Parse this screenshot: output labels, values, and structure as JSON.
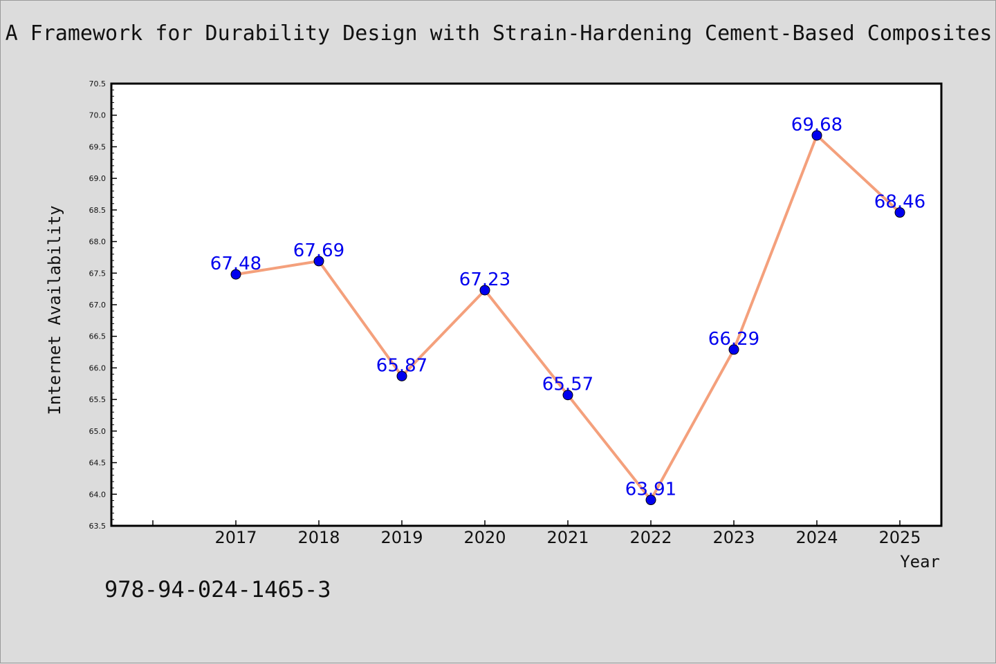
{
  "chart_data": {
    "type": "line",
    "title": "A Framework for Durability Design with Strain-Hardening Cement-Based Composites",
    "xlabel": "Year",
    "ylabel": "Internet Availability",
    "categories": [
      "2017",
      "2018",
      "2019",
      "2020",
      "2021",
      "2022",
      "2023",
      "2024",
      "2025"
    ],
    "values": [
      67.48,
      67.69,
      65.87,
      67.23,
      65.57,
      63.91,
      66.29,
      69.68,
      68.46
    ],
    "data_labels": [
      "67.48",
      "67.69",
      "65.87",
      "67.23",
      "65.57",
      "63.91",
      "66.29",
      "69.68",
      "68.46"
    ],
    "yticks": [
      "63.5",
      "64.0",
      "64.5",
      "65.0",
      "65.5",
      "66.0",
      "66.5",
      "67.0",
      "67.5",
      "68.0",
      "68.5",
      "69.0",
      "69.5",
      "70.0",
      "70.5"
    ],
    "ylim": [
      63.5,
      70.5
    ],
    "grid": false,
    "legend": "none",
    "line_color": "#f4a07c",
    "marker_color": "#0000ee"
  },
  "footer": {
    "isbn": "978-94-024-1465-3"
  }
}
